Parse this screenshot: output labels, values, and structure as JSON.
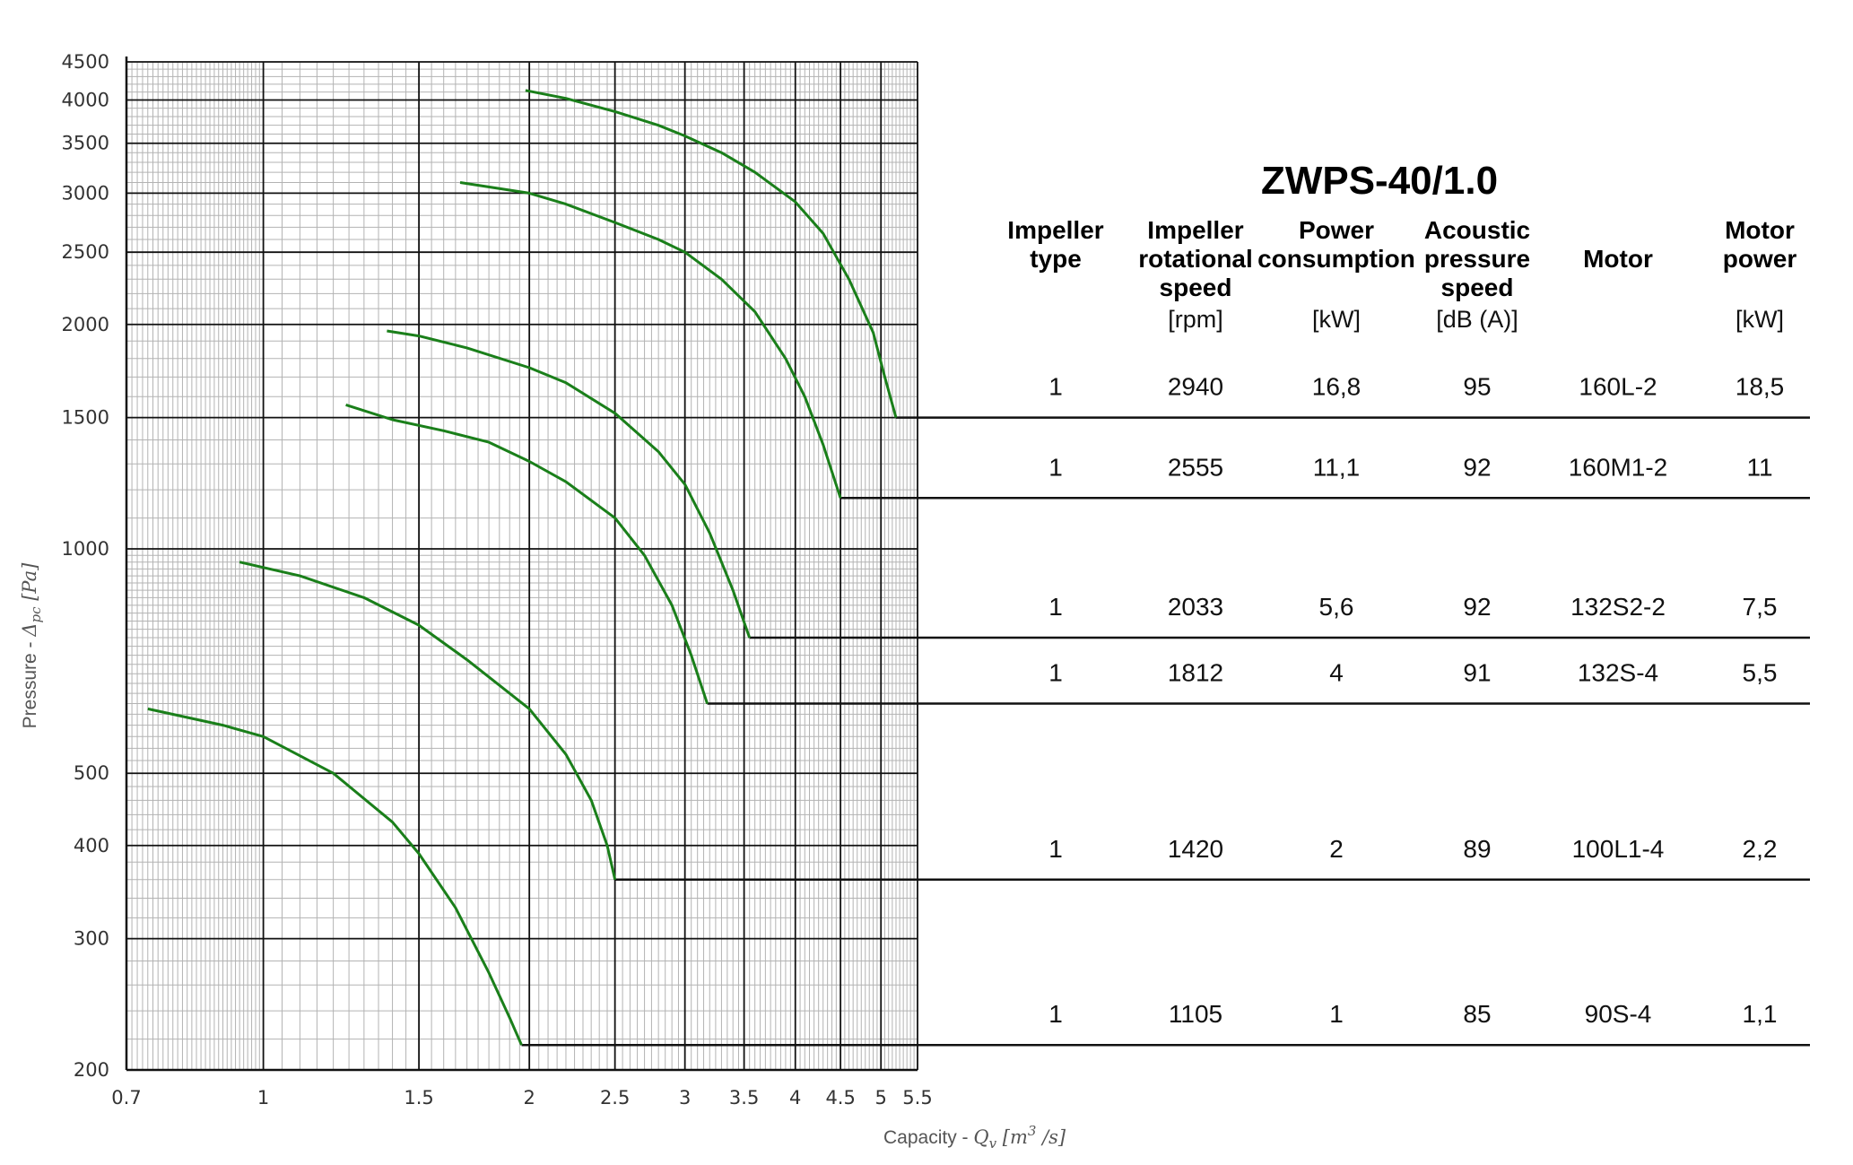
{
  "chart_data": {
    "type": "line",
    "title": "",
    "xlabel": "Capacity - ",
    "xlabel_math": "Qv [m³ /s]",
    "ylabel": "Pressure - ",
    "ylabel_math": "Δpc [Pa]",
    "x_scale": "log",
    "y_scale": "log",
    "xlim": [
      0.7,
      5.5
    ],
    "ylim": [
      200,
      4500
    ],
    "grid": true,
    "x_ticks": [
      0.7,
      1,
      1.5,
      2,
      2.5,
      3,
      3.5,
      4,
      4.5,
      5,
      5.5
    ],
    "x_tick_labels": [
      "0.7",
      "1",
      "1.5",
      "2",
      "2.5",
      "3",
      "3.5",
      "4",
      "4.5",
      "5",
      "5.5"
    ],
    "y_ticks": [
      200,
      300,
      400,
      500,
      1000,
      1500,
      2000,
      2500,
      3000,
      3500,
      4000,
      4500
    ],
    "y_tick_labels": [
      "200",
      "300",
      "400",
      "500",
      "1000",
      "1500",
      "2000",
      "2500",
      "3000",
      "3500",
      "4000",
      "4500"
    ],
    "line_color": "#1a7f1a",
    "series": [
      {
        "rpm_row": 0,
        "points": [
          [
            1.98,
            4120
          ],
          [
            2.2,
            4020
          ],
          [
            2.5,
            3860
          ],
          [
            2.8,
            3700
          ],
          [
            3.0,
            3580
          ],
          [
            3.3,
            3400
          ],
          [
            3.6,
            3200
          ],
          [
            4.0,
            2920
          ],
          [
            4.3,
            2650
          ],
          [
            4.6,
            2300
          ],
          [
            4.9,
            1950
          ],
          [
            5.05,
            1700
          ],
          [
            5.2,
            1500
          ]
        ],
        "end_x": 5.2,
        "end_y": 1500
      },
      {
        "rpm_row": 1,
        "points": [
          [
            1.67,
            3100
          ],
          [
            2.0,
            3000
          ],
          [
            2.2,
            2900
          ],
          [
            2.5,
            2740
          ],
          [
            2.8,
            2600
          ],
          [
            3.0,
            2500
          ],
          [
            3.3,
            2300
          ],
          [
            3.6,
            2080
          ],
          [
            3.9,
            1800
          ],
          [
            4.1,
            1600
          ],
          [
            4.3,
            1380
          ],
          [
            4.5,
            1170
          ]
        ],
        "end_x": 4.5,
        "end_y": 1170
      },
      {
        "rpm_row": 2,
        "points": [
          [
            1.38,
            1960
          ],
          [
            1.5,
            1930
          ],
          [
            1.7,
            1860
          ],
          [
            2.0,
            1750
          ],
          [
            2.2,
            1670
          ],
          [
            2.5,
            1520
          ],
          [
            2.8,
            1350
          ],
          [
            3.0,
            1220
          ],
          [
            3.2,
            1050
          ],
          [
            3.4,
            880
          ],
          [
            3.55,
            760
          ]
        ],
        "end_x": 3.55,
        "end_y": 760
      },
      {
        "rpm_row": 3,
        "points": [
          [
            1.24,
            1560
          ],
          [
            1.4,
            1490
          ],
          [
            1.6,
            1440
          ],
          [
            1.8,
            1390
          ],
          [
            2.0,
            1310
          ],
          [
            2.2,
            1230
          ],
          [
            2.5,
            1100
          ],
          [
            2.7,
            980
          ],
          [
            2.9,
            840
          ],
          [
            3.05,
            720
          ],
          [
            3.18,
            620
          ]
        ],
        "end_x": 3.18,
        "end_y": 620
      },
      {
        "rpm_row": 4,
        "points": [
          [
            0.94,
            960
          ],
          [
            1.1,
            920
          ],
          [
            1.3,
            860
          ],
          [
            1.5,
            790
          ],
          [
            1.7,
            710
          ],
          [
            2.0,
            610
          ],
          [
            2.2,
            530
          ],
          [
            2.35,
            460
          ],
          [
            2.45,
            400
          ],
          [
            2.5,
            360
          ]
        ],
        "end_x": 2.5,
        "end_y": 360
      },
      {
        "rpm_row": 5,
        "points": [
          [
            0.74,
            610
          ],
          [
            0.9,
            580
          ],
          [
            1.0,
            560
          ],
          [
            1.2,
            500
          ],
          [
            1.4,
            430
          ],
          [
            1.5,
            390
          ],
          [
            1.65,
            330
          ],
          [
            1.8,
            270
          ],
          [
            1.9,
            235
          ],
          [
            1.96,
            216
          ]
        ],
        "end_x": 1.96,
        "end_y": 216
      }
    ]
  },
  "table": {
    "title": "ZWPS-40/1.0",
    "headers": [
      {
        "lines": [
          "Impeller",
          "type"
        ],
        "unit": ""
      },
      {
        "lines": [
          "Impeller",
          "rotational",
          "speed"
        ],
        "unit": "[rpm]"
      },
      {
        "lines": [
          "Power",
          "consumption"
        ],
        "unit": "[kW]"
      },
      {
        "lines": [
          "Acoustic",
          "pressure",
          "speed"
        ],
        "unit": "[dB (A)]"
      },
      {
        "lines": [
          "Motor"
        ],
        "unit": ""
      },
      {
        "lines": [
          "Motor",
          "power"
        ],
        "unit": "[kW]"
      }
    ],
    "rows": [
      [
        "1",
        "2940",
        "16,8",
        "95",
        "160L-2",
        "18,5"
      ],
      [
        "1",
        "2555",
        "11,1",
        "92",
        "160M1-2",
        "11"
      ],
      [
        "1",
        "2033",
        "5,6",
        "92",
        "132S2-2",
        "7,5"
      ],
      [
        "1",
        "1812",
        "4",
        "91",
        "132S-4",
        "5,5"
      ],
      [
        "1",
        "1420",
        "2",
        "89",
        "100L1-4",
        "2,2"
      ],
      [
        "1",
        "1105",
        "1",
        "85",
        "90S-4",
        "1,1"
      ]
    ]
  }
}
